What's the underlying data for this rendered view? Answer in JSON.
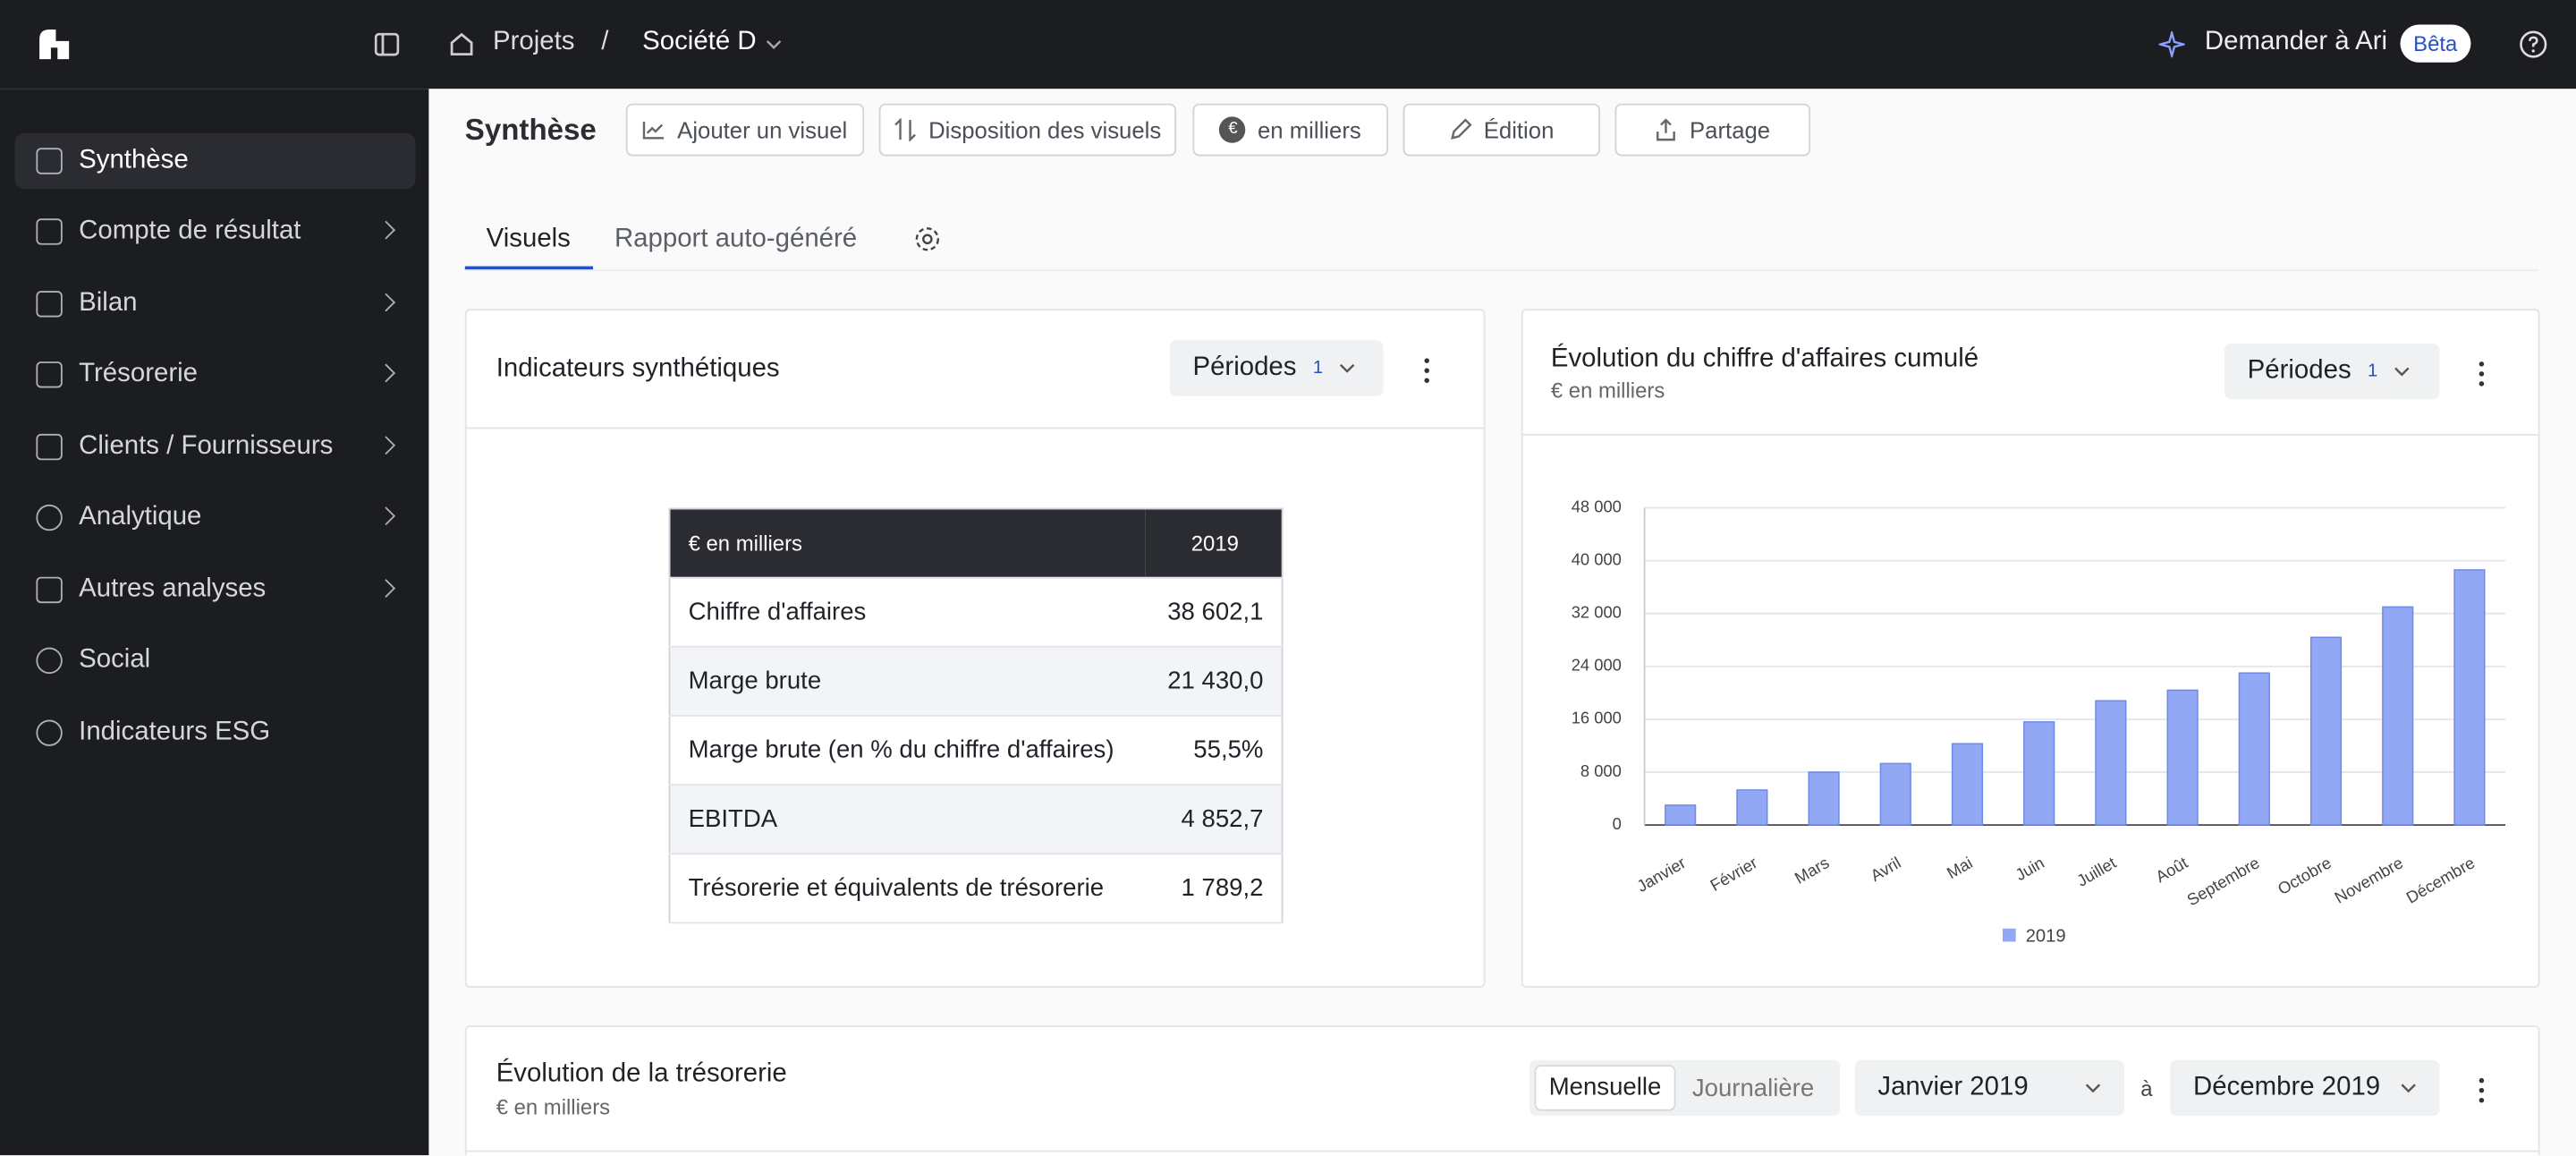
{
  "topbar": {
    "breadcrumb_root": "Projets",
    "separator": "/",
    "company": "Société D",
    "ask": "Demander à Ari",
    "beta": "Bêta"
  },
  "sidebar": {
    "items": [
      "Synthèse",
      "Compte de résultat",
      "Bilan",
      "Trésorerie",
      "Clients / Fournisseurs",
      "Analytique",
      "Autres analyses",
      "Social",
      "Indicateurs ESG"
    ]
  },
  "toolbar": {
    "title": "Synthèse",
    "currency_icon": "€",
    "buttons": [
      "Ajouter un visuel",
      "Disposition des visuels",
      "en milliers",
      "Édition",
      "Partage"
    ]
  },
  "tabs": [
    "Visuels",
    "Rapport auto-généré"
  ],
  "indicators_card": {
    "title": "Indicateurs synthétiques",
    "period_button": "Périodes",
    "period_count": "1",
    "table": {
      "header": [
        "€ en milliers",
        "2019"
      ],
      "rows": [
        [
          "Chiffre d'affaires",
          "38 602,1"
        ],
        [
          "Marge brute",
          "21 430,0"
        ],
        [
          "Marge brute (en % du chiffre d'affaires)",
          "55,5%"
        ],
        [
          "EBITDA",
          "4 852,7"
        ],
        [
          "Trésorerie et équivalents de trésorerie",
          "1 789,2"
        ]
      ]
    }
  },
  "chart_card": {
    "period_button": "Périodes",
    "period_count": "1"
  },
  "chart_data": {
    "type": "bar",
    "title": "Évolution du chiffre d'affaires cumulé",
    "subtitle": "€ en milliers",
    "categories": [
      "Janvier",
      "Février",
      "Mars",
      "Avril",
      "Mai",
      "Juin",
      "Juillet",
      "Août",
      "Septembre",
      "Octobre",
      "Novembre",
      "Décembre"
    ],
    "series": [
      {
        "name": "2019",
        "color": "#93a8f4",
        "values": [
          3000,
          5300,
          8000,
          9300,
          12300,
          15600,
          18800,
          20400,
          23000,
          28400,
          33000,
          38602
        ]
      }
    ],
    "ylim": [
      0,
      48000
    ],
    "yticks": [
      0,
      {
        "value": 8000,
        "label": "8 000"
      },
      {
        "value": 16000,
        "label": "16 000"
      },
      {
        "value": 24000,
        "label": "24 000"
      },
      {
        "value": 32000,
        "label": "32 000"
      },
      {
        "value": 40000,
        "label": "40 000"
      },
      {
        "value": 48000,
        "label": "48 000"
      }
    ],
    "grid": true,
    "legend": "bottom"
  },
  "treasury_card": {
    "title": "Évolution de la trésorerie",
    "subtitle": "€ en milliers",
    "modes": [
      "Mensuelle",
      "Journalière"
    ],
    "from": "Janvier 2019",
    "to_word": "à",
    "to": "Décembre 2019"
  }
}
